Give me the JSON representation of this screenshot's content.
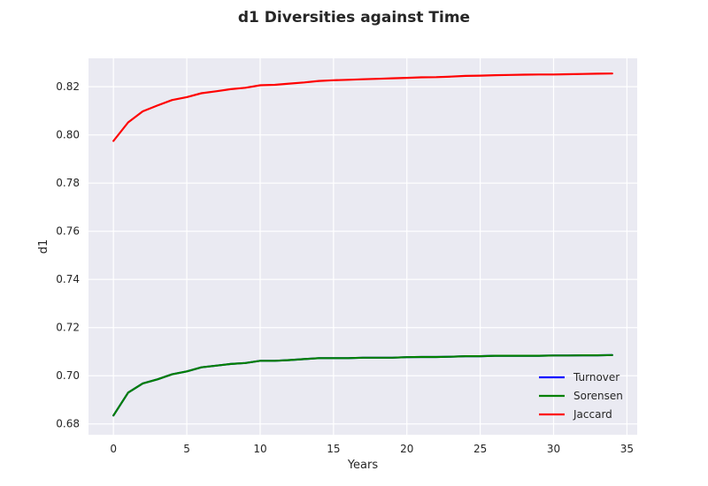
{
  "chart_data": {
    "type": "line",
    "title": "d1 Diversities against Time",
    "xlabel": "Years",
    "ylabel": "d1",
    "xlim": [
      -1.7,
      35.7
    ],
    "ylim": [
      0.6755,
      0.8318
    ],
    "xticks": [
      0,
      5,
      10,
      15,
      20,
      25,
      30,
      35
    ],
    "xtick_labels": [
      "0",
      "5",
      "10",
      "15",
      "20",
      "25",
      "30",
      "35"
    ],
    "yticks": [
      0.68,
      0.7,
      0.72,
      0.74,
      0.76,
      0.78,
      0.8,
      0.82
    ],
    "ytick_labels": [
      "0.68",
      "0.70",
      "0.72",
      "0.74",
      "0.76",
      "0.78",
      "0.80",
      "0.82"
    ],
    "grid": true,
    "legend_position": "lower-right",
    "x": [
      0,
      1,
      2,
      3,
      4,
      5,
      6,
      7,
      8,
      9,
      10,
      11,
      12,
      13,
      14,
      15,
      16,
      17,
      18,
      19,
      20,
      21,
      22,
      23,
      24,
      25,
      26,
      27,
      28,
      29,
      30,
      31,
      32,
      33,
      34
    ],
    "series": [
      {
        "name": "Turnover",
        "color": "#0000ff",
        "values": [
          0.6835,
          0.693,
          0.6968,
          0.6985,
          0.7006,
          0.7018,
          0.7035,
          0.7042,
          0.7049,
          0.7053,
          0.7062,
          0.7062,
          0.7065,
          0.7069,
          0.7073,
          0.7073,
          0.7073,
          0.7075,
          0.7075,
          0.7075,
          0.7077,
          0.7078,
          0.7078,
          0.7079,
          0.7081,
          0.7081,
          0.7083,
          0.7083,
          0.7083,
          0.7083,
          0.7084,
          0.7084,
          0.7085,
          0.7085,
          0.7086
        ]
      },
      {
        "name": "Sorensen",
        "color": "#008000",
        "values": [
          0.6835,
          0.693,
          0.6968,
          0.6985,
          0.7006,
          0.7018,
          0.7035,
          0.7042,
          0.7049,
          0.7053,
          0.7062,
          0.7062,
          0.7065,
          0.7069,
          0.7073,
          0.7073,
          0.7073,
          0.7075,
          0.7075,
          0.7075,
          0.7077,
          0.7078,
          0.7078,
          0.7079,
          0.7081,
          0.7081,
          0.7083,
          0.7083,
          0.7083,
          0.7083,
          0.7084,
          0.7084,
          0.7085,
          0.7085,
          0.7086
        ]
      },
      {
        "name": "Jaccard",
        "color": "#ff0000",
        "values": [
          0.7975,
          0.8052,
          0.8098,
          0.8122,
          0.8145,
          0.8157,
          0.8173,
          0.8181,
          0.819,
          0.8196,
          0.8206,
          0.8208,
          0.8213,
          0.8218,
          0.8224,
          0.8227,
          0.8229,
          0.8231,
          0.8233,
          0.8235,
          0.8237,
          0.8239,
          0.824,
          0.8242,
          0.8245,
          0.8246,
          0.8248,
          0.8249,
          0.825,
          0.8251,
          0.8251,
          0.8252,
          0.8253,
          0.8254,
          0.8255
        ]
      }
    ]
  }
}
